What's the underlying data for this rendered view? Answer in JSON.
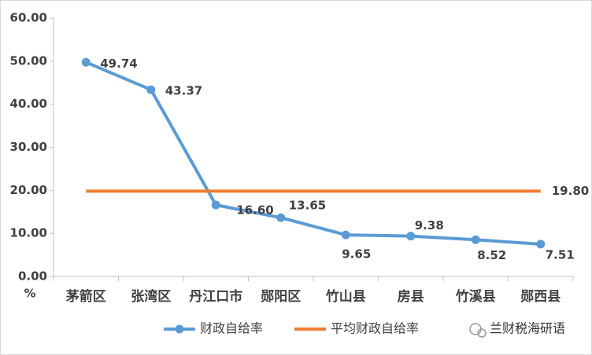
{
  "chart_data": {
    "type": "line",
    "y_label": "%",
    "categories": [
      "茅箭区",
      "张湾区",
      "丹江口市",
      "郧阳区",
      "竹山县",
      "房县",
      "竹溪县",
      "郧西县"
    ],
    "series": [
      {
        "name": "财政自给率",
        "color": "#5b9bd5",
        "marker": true,
        "values": [
          49.74,
          43.37,
          16.6,
          13.65,
          9.65,
          9.38,
          8.52,
          7.51
        ],
        "value_labels": [
          "49.74",
          "43.37",
          "16.60",
          "13.65",
          "9.65",
          "9.38",
          "8.52",
          "7.51"
        ]
      },
      {
        "name": "平均财政自给率",
        "color": "#ed7d31",
        "marker": false,
        "values": [
          19.8,
          19.8,
          19.8,
          19.8,
          19.8,
          19.8,
          19.8,
          19.8
        ],
        "value_labels": [
          null,
          null,
          null,
          null,
          null,
          null,
          null,
          "19.80"
        ]
      }
    ],
    "ylim": [
      0,
      60
    ],
    "yticks": [
      {
        "value": 0,
        "label": "0.00"
      },
      {
        "value": 10,
        "label": "10.00"
      },
      {
        "value": 20,
        "label": "20.00"
      },
      {
        "value": 30,
        "label": "30.00"
      },
      {
        "value": 40,
        "label": "40.00"
      },
      {
        "value": 50,
        "label": "50.00"
      },
      {
        "value": 60,
        "label": "60.00"
      }
    ],
    "grid": false,
    "legend": "bottom",
    "watermark": "兰财税海研语"
  }
}
